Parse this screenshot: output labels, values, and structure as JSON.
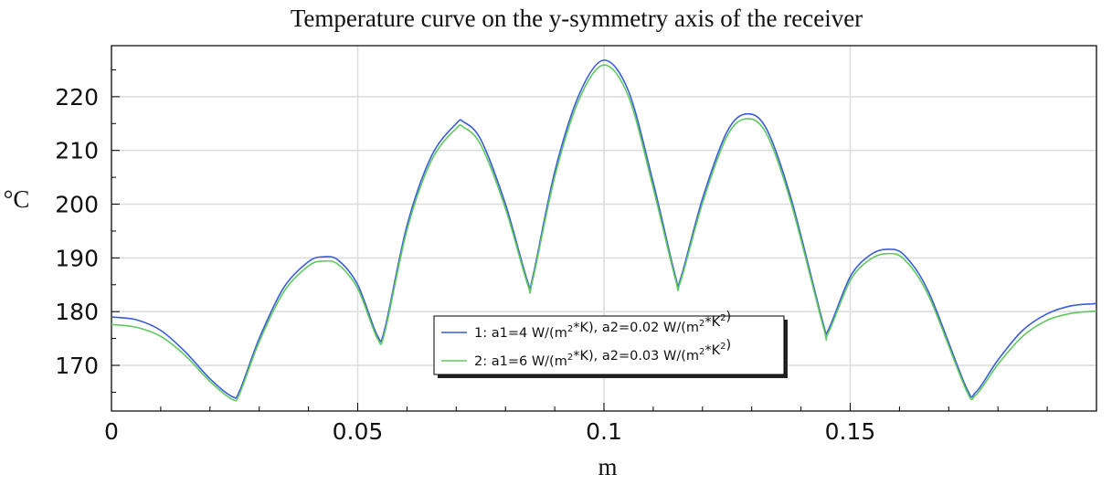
{
  "chart_data": {
    "type": "line",
    "title": "Temperature curve on the y-symmetry axis of the receiver",
    "xlabel": "m",
    "ylabel": "°C",
    "xlim": [
      0,
      0.2
    ],
    "ylim": [
      161.5,
      229.5
    ],
    "x_ticks": [
      0,
      0.05,
      0.1,
      0.15
    ],
    "x_tick_labels": [
      "0",
      "0.05",
      "0.1",
      "0.15"
    ],
    "x_grid": [
      0,
      0.05,
      0.1,
      0.15,
      0.2
    ],
    "y_ticks": [
      170,
      180,
      190,
      200,
      210,
      220
    ],
    "y_tick_labels": [
      "170",
      "180",
      "190",
      "200",
      "210",
      "220"
    ],
    "y_grid": [
      170,
      180,
      190,
      200,
      210,
      220
    ],
    "grid": true,
    "legend_position": "bottom-center",
    "series": [
      {
        "name": "1: a1=4 W/(m²*K), a2=0.02 W/(m²*K²)",
        "legend": {
          "prefix": "1: a1=4 W/(m",
          "sup1": "2",
          "mid": "*K), a2=0.02 W/(m",
          "sup2": "2",
          "mid2": "*K",
          "sup3": "2",
          "suffix": ")"
        },
        "color": "#3a5cd8",
        "x": [
          0,
          0.005,
          0.01,
          0.015,
          0.02,
          0.0245,
          0.026,
          0.03,
          0.035,
          0.04,
          0.043,
          0.046,
          0.05,
          0.054,
          0.0555,
          0.06,
          0.065,
          0.07,
          0.0715,
          0.075,
          0.08,
          0.0845,
          0.0855,
          0.09,
          0.095,
          0.1,
          0.105,
          0.11,
          0.1145,
          0.1155,
          0.12,
          0.125,
          0.129,
          0.133,
          0.138,
          0.1445,
          0.1455,
          0.15,
          0.154,
          0.1575,
          0.161,
          0.166,
          0.1735,
          0.1755,
          0.18,
          0.185,
          0.19,
          0.195,
          0.2
        ],
        "y": [
          179,
          178.5,
          176.5,
          172.5,
          167.5,
          164.2,
          165.2,
          175,
          184.5,
          189.3,
          190.2,
          189.6,
          185,
          175.5,
          176.8,
          196,
          209,
          215,
          215.3,
          212,
          200,
          185.6,
          186.3,
          206,
          220.5,
          226.8,
          221,
          204,
          186.6,
          186,
          201,
          213.5,
          216.8,
          214,
          201,
          177.8,
          176.5,
          186.5,
          190.5,
          191.6,
          190.5,
          183.5,
          166,
          165,
          171,
          176.5,
          179.6,
          181.1,
          181.5
        ]
      },
      {
        "name": "2: a1=6 W/(m²*K), a2=0.03 W/(m²*K²)",
        "legend": {
          "prefix": "2: a1=6 W/(m",
          "sup1": "2",
          "mid": "*K), a2=0.03 W/(m",
          "sup2": "2",
          "mid2": "*K",
          "sup3": "2",
          "suffix": ")"
        },
        "color": "#5ec95e",
        "x": [
          0,
          0.005,
          0.01,
          0.015,
          0.02,
          0.0245,
          0.026,
          0.03,
          0.035,
          0.04,
          0.043,
          0.046,
          0.05,
          0.054,
          0.0555,
          0.06,
          0.065,
          0.07,
          0.0715,
          0.075,
          0.08,
          0.0845,
          0.0855,
          0.09,
          0.095,
          0.1,
          0.105,
          0.11,
          0.1145,
          0.1155,
          0.12,
          0.125,
          0.129,
          0.133,
          0.138,
          0.1445,
          0.1455,
          0.15,
          0.154,
          0.1575,
          0.161,
          0.166,
          0.1735,
          0.1755,
          0.18,
          0.185,
          0.19,
          0.195,
          0.2
        ],
        "y": [
          177.6,
          177.1,
          175.4,
          171.8,
          167,
          163.7,
          164.7,
          174.4,
          183.7,
          188.5,
          189.4,
          188.8,
          184.3,
          175,
          176.2,
          195.2,
          208.2,
          214.1,
          214.3,
          211,
          199.2,
          185.1,
          185.8,
          205.1,
          219.6,
          225.9,
          220,
          203,
          186.1,
          185.5,
          200.2,
          212.7,
          215.9,
          213.1,
          200.2,
          177.3,
          176,
          185.8,
          189.7,
          190.8,
          189.7,
          182.8,
          165.5,
          164.5,
          170.2,
          175.4,
          178.4,
          179.7,
          180.1
        ]
      }
    ]
  }
}
